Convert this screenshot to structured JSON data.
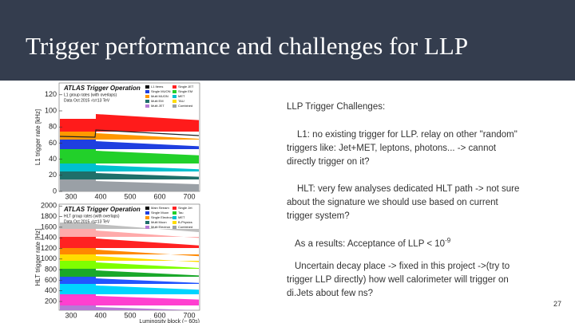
{
  "title": "Trigger performance and challenges for LLP",
  "plots": [
    {
      "header": "ATLAS Trigger Operation",
      "subheader": "L1 group rates (with overlaps)",
      "info": "Data Oct 2015 √s=13 TeV",
      "ylabel": "L1 trigger rate [kHz]",
      "yticks": [
        "0",
        "20",
        "40",
        "60",
        "80",
        "100",
        "120"
      ],
      "xticks": [
        "300",
        "400",
        "500",
        "600",
        "700"
      ],
      "legend": [
        "L1 Items",
        "Single JET",
        "Single MUON",
        "Single EM",
        "Multi MUON",
        "MET",
        "Multi EM",
        "TAU",
        "Multi JET",
        "Combined"
      ]
    },
    {
      "header": "ATLAS Trigger Operation",
      "subheader": "HLT group rates (with overlaps)",
      "info": "Data Oct 2015 √s=13 TeV",
      "ylabel": "HLT trigger rate [Hz]",
      "yticks": [
        "200",
        "400",
        "600",
        "800",
        "1000",
        "1200",
        "1400",
        "1600",
        "1800",
        "2000"
      ],
      "xticks": [
        "300",
        "400",
        "500",
        "600",
        "700"
      ],
      "xlabel": "Luminosity block (~ 60s)",
      "legend": [
        "Main Stream",
        "Single Jet",
        "Single Muon",
        "Tau",
        "Single Electron",
        "MET",
        "Multi Muon",
        "B-Physics",
        "Multi Electron",
        "Combined"
      ]
    }
  ],
  "text": {
    "heading": "LLP Trigger Challenges:",
    "p1": [
      "L1: no existing trigger for LLP. relay on other \"random\"",
      "triggers like: Jet+MET, leptons, photons... -> cannot",
      "directly trigger on it?"
    ],
    "p2": [
      "HLT: very few analyses dedicated HLT path -> not sure",
      "about the signature we should use based on current",
      "trigger system?"
    ],
    "p3": {
      "text": "As a results: Acceptance of LLP < 10",
      "exponent": "-9"
    },
    "p4": [
      "Uncertain decay place -> fixed in this project ->(try to",
      "trigger LLP directly) how well calorimeter will trigger on",
      "di.Jets about few ns?"
    ]
  },
  "page_number": "27"
}
